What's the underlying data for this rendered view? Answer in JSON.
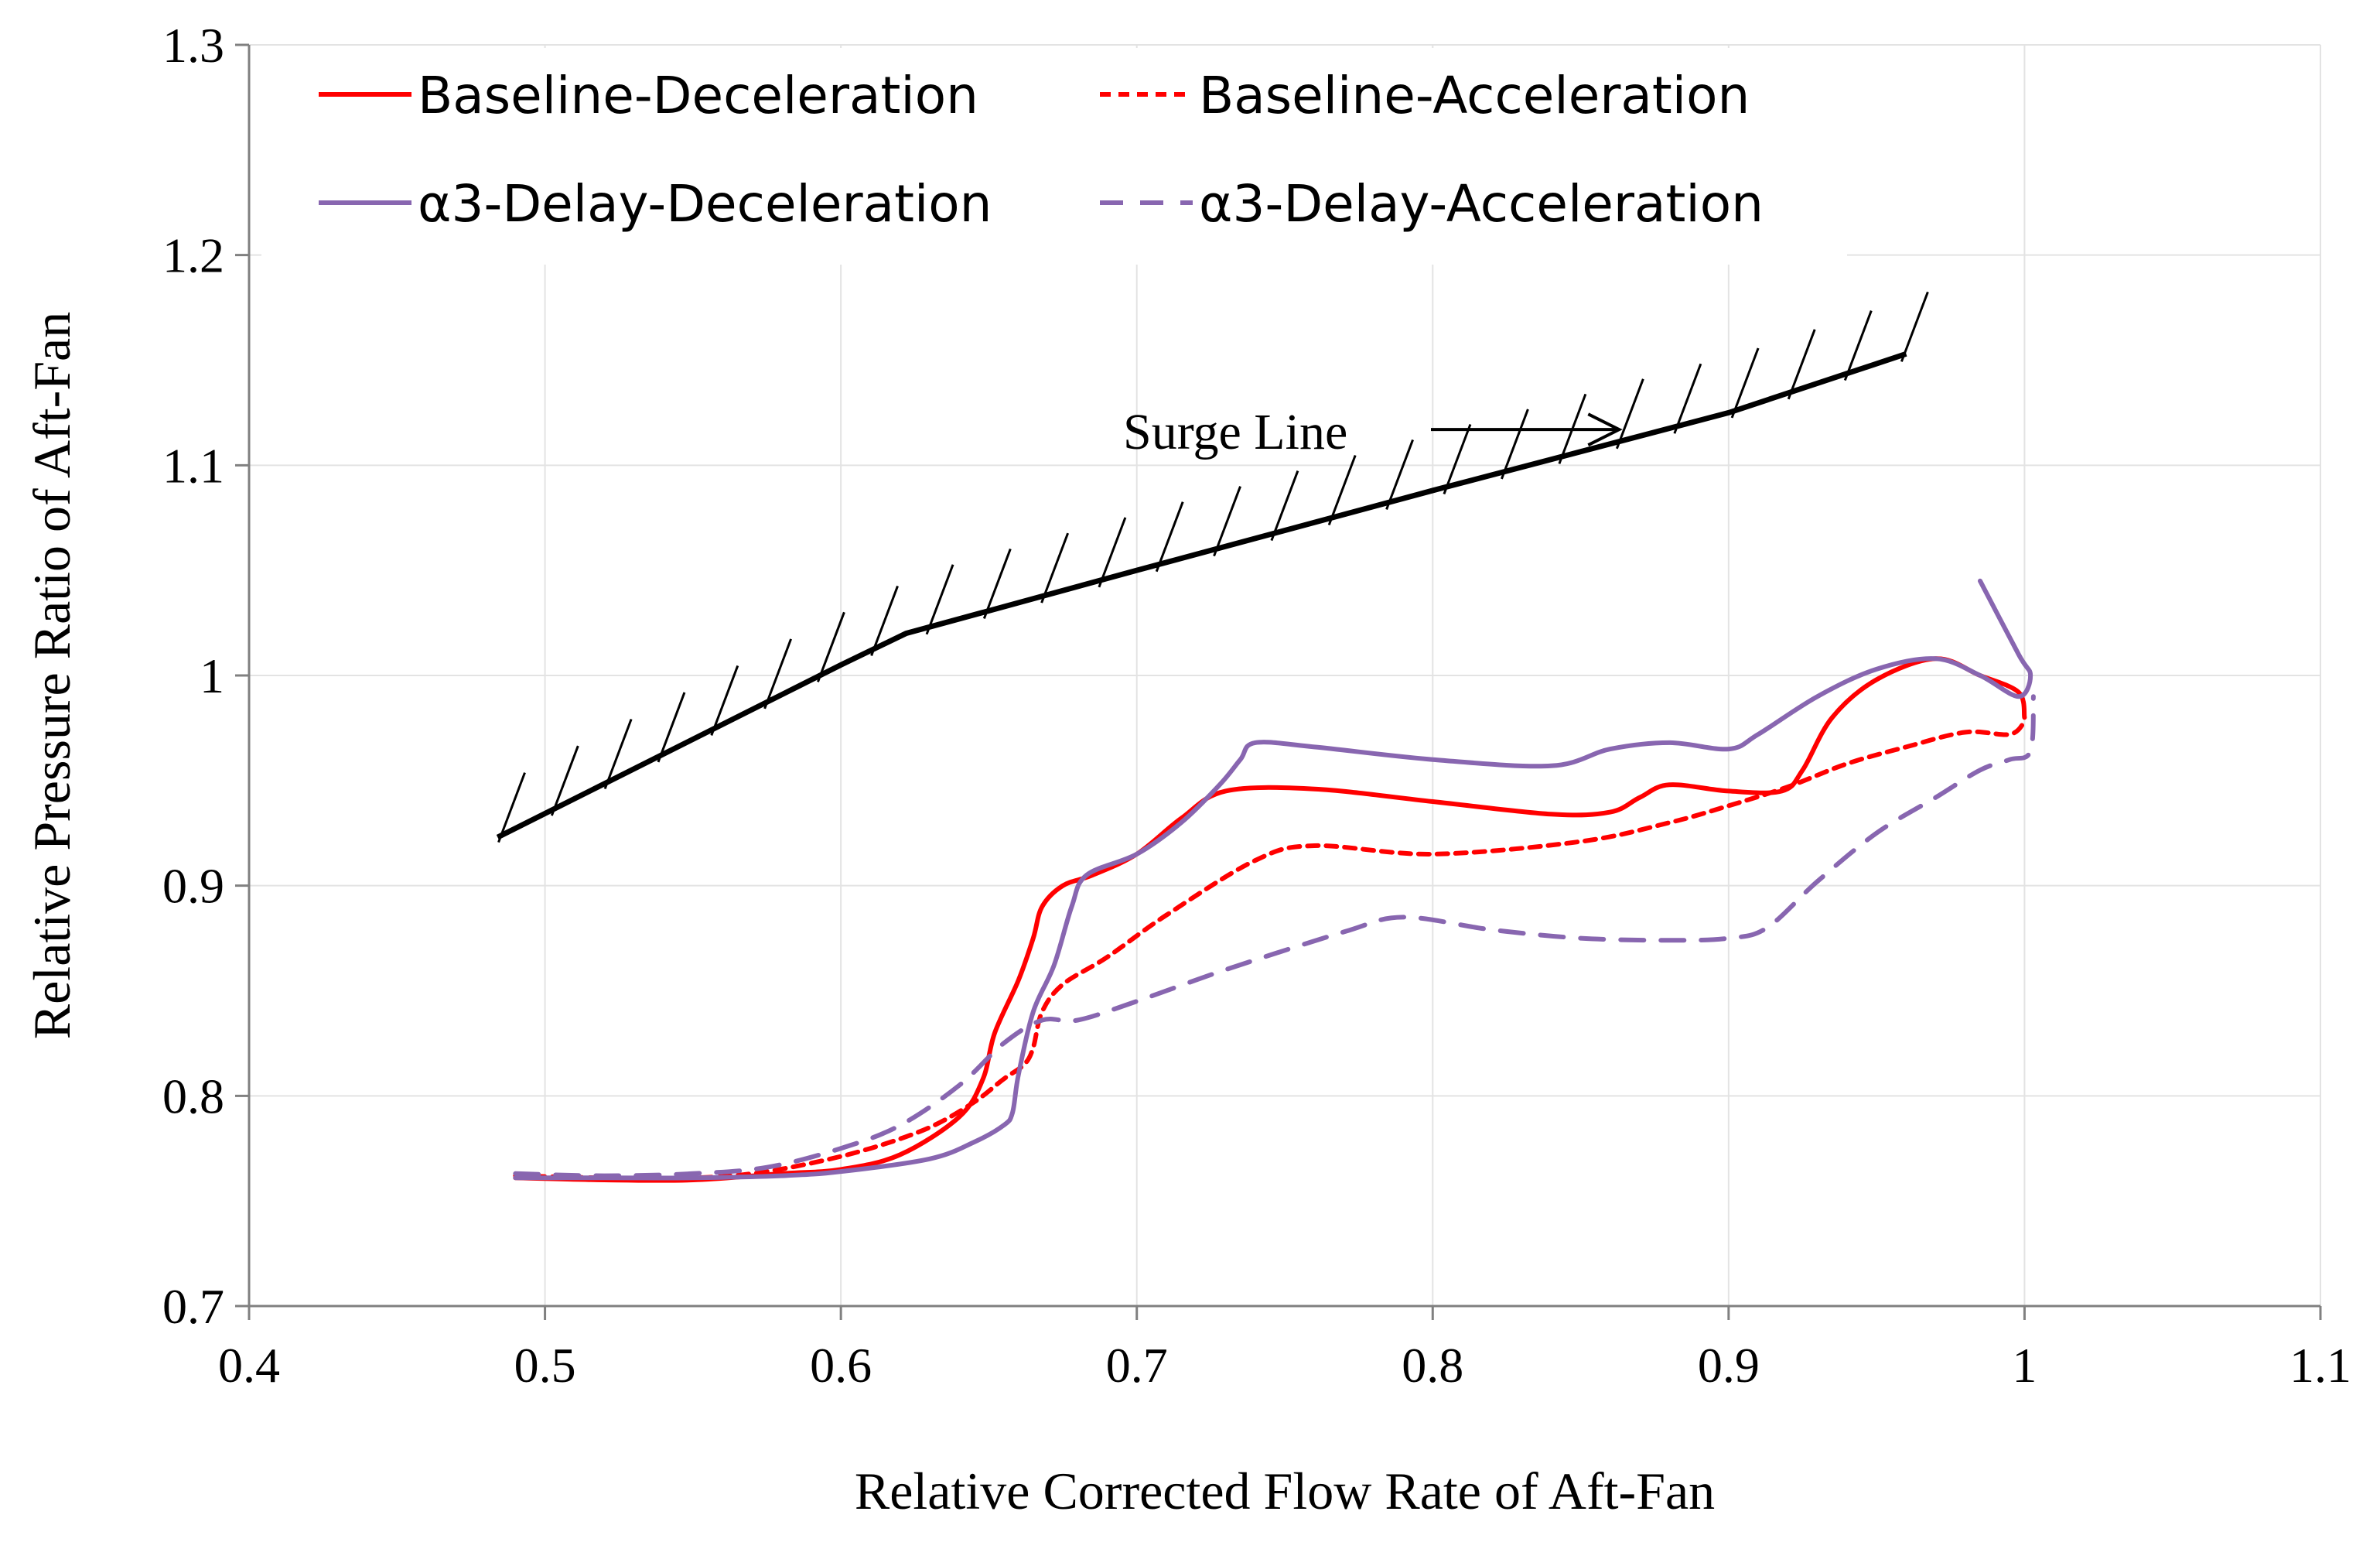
{
  "chart_data": {
    "type": "line",
    "title": "",
    "xlabel": "Relative Corrected Flow Rate of Aft-Fan",
    "ylabel": "Relative Pressure Ratio of Aft-Fan",
    "xlim": [
      0.4,
      1.1
    ],
    "ylim": [
      0.7,
      1.3
    ],
    "x_ticks": [
      0.4,
      0.5,
      0.6,
      0.7,
      0.8,
      0.9,
      1.0,
      1.1
    ],
    "x_tick_labels": [
      "0.4",
      "0.5",
      "0.6",
      "0.7",
      "0.8",
      "0.9",
      "1",
      "1.1"
    ],
    "y_ticks": [
      0.7,
      0.8,
      0.9,
      1.0,
      1.1,
      1.2,
      1.3
    ],
    "y_tick_labels": [
      "0.7",
      "0.8",
      "0.9",
      "1",
      "1.1",
      "1.2",
      "1.3"
    ],
    "grid": true,
    "legend_position": "top-left",
    "annotation": {
      "text": "Surge Line",
      "arrow_to": [
        0.863,
        1.117
      ]
    },
    "surge_line": {
      "name": "Surge Line",
      "color": "#000000",
      "points": [
        [
          0.484,
          0.923
        ],
        [
          0.6,
          1.005
        ],
        [
          0.622,
          1.02
        ],
        [
          0.7,
          1.05
        ],
        [
          0.8,
          1.088
        ],
        [
          0.9,
          1.125
        ],
        [
          0.96,
          1.153
        ]
      ]
    },
    "series": [
      {
        "name": "Baseline-Deceleration",
        "color": "#ff0000",
        "dash": "solid",
        "points": [
          [
            0.49,
            0.761
          ],
          [
            0.52,
            0.76
          ],
          [
            0.55,
            0.76
          ],
          [
            0.58,
            0.763
          ],
          [
            0.6,
            0.765
          ],
          [
            0.62,
            0.772
          ],
          [
            0.64,
            0.79
          ],
          [
            0.648,
            0.808
          ],
          [
            0.652,
            0.83
          ],
          [
            0.66,
            0.855
          ],
          [
            0.665,
            0.875
          ],
          [
            0.668,
            0.89
          ],
          [
            0.675,
            0.9
          ],
          [
            0.685,
            0.905
          ],
          [
            0.7,
            0.915
          ],
          [
            0.715,
            0.932
          ],
          [
            0.73,
            0.945
          ],
          [
            0.76,
            0.946
          ],
          [
            0.8,
            0.94
          ],
          [
            0.84,
            0.934
          ],
          [
            0.86,
            0.935
          ],
          [
            0.87,
            0.942
          ],
          [
            0.88,
            0.948
          ],
          [
            0.9,
            0.945
          ],
          [
            0.918,
            0.945
          ],
          [
            0.925,
            0.955
          ],
          [
            0.935,
            0.98
          ],
          [
            0.95,
            0.998
          ],
          [
            0.97,
            1.008
          ],
          [
            0.985,
            1.0
          ],
          [
            0.998,
            0.992
          ],
          [
            1.0,
            0.98
          ]
        ]
      },
      {
        "name": "Baseline-Acceleration",
        "color": "#ff0000",
        "dash": "dashed",
        "points": [
          [
            0.49,
            0.762
          ],
          [
            0.52,
            0.761
          ],
          [
            0.55,
            0.761
          ],
          [
            0.57,
            0.763
          ],
          [
            0.59,
            0.768
          ],
          [
            0.61,
            0.775
          ],
          [
            0.63,
            0.785
          ],
          [
            0.645,
            0.797
          ],
          [
            0.655,
            0.808
          ],
          [
            0.662,
            0.815
          ],
          [
            0.665,
            0.823
          ],
          [
            0.668,
            0.84
          ],
          [
            0.675,
            0.853
          ],
          [
            0.69,
            0.866
          ],
          [
            0.71,
            0.886
          ],
          [
            0.74,
            0.912
          ],
          [
            0.76,
            0.919
          ],
          [
            0.8,
            0.915
          ],
          [
            0.85,
            0.921
          ],
          [
            0.88,
            0.93
          ],
          [
            0.9,
            0.938
          ],
          [
            0.92,
            0.947
          ],
          [
            0.94,
            0.958
          ],
          [
            0.96,
            0.966
          ],
          [
            0.98,
            0.973
          ],
          [
            0.995,
            0.972
          ],
          [
            1.0,
            0.978
          ]
        ]
      },
      {
        "name": "α3-Delay-Deceleration",
        "color": "#8866b0",
        "dash": "solid",
        "points": [
          [
            0.49,
            0.761
          ],
          [
            0.52,
            0.761
          ],
          [
            0.55,
            0.761
          ],
          [
            0.58,
            0.762
          ],
          [
            0.6,
            0.764
          ],
          [
            0.63,
            0.77
          ],
          [
            0.645,
            0.778
          ],
          [
            0.655,
            0.786
          ],
          [
            0.658,
            0.792
          ],
          [
            0.66,
            0.81
          ],
          [
            0.665,
            0.84
          ],
          [
            0.672,
            0.862
          ],
          [
            0.678,
            0.89
          ],
          [
            0.683,
            0.905
          ],
          [
            0.7,
            0.915
          ],
          [
            0.715,
            0.93
          ],
          [
            0.728,
            0.948
          ],
          [
            0.735,
            0.96
          ],
          [
            0.74,
            0.968
          ],
          [
            0.76,
            0.966
          ],
          [
            0.8,
            0.96
          ],
          [
            0.84,
            0.957
          ],
          [
            0.86,
            0.965
          ],
          [
            0.88,
            0.968
          ],
          [
            0.9,
            0.965
          ],
          [
            0.91,
            0.972
          ],
          [
            0.93,
            0.99
          ],
          [
            0.95,
            1.003
          ],
          [
            0.97,
            1.008
          ],
          [
            0.985,
            1.0
          ],
          [
            0.998,
            0.99
          ],
          [
            1.002,
            1.0
          ],
          [
            0.998,
            1.01
          ],
          [
            0.985,
            1.045
          ]
        ]
      },
      {
        "name": "α3-Delay-Acceleration",
        "color": "#8866b0",
        "dash": "dashed",
        "points": [
          [
            0.49,
            0.763
          ],
          [
            0.52,
            0.762
          ],
          [
            0.55,
            0.763
          ],
          [
            0.575,
            0.766
          ],
          [
            0.6,
            0.775
          ],
          [
            0.62,
            0.786
          ],
          [
            0.64,
            0.805
          ],
          [
            0.655,
            0.825
          ],
          [
            0.668,
            0.836
          ],
          [
            0.68,
            0.836
          ],
          [
            0.7,
            0.845
          ],
          [
            0.73,
            0.86
          ],
          [
            0.77,
            0.878
          ],
          [
            0.79,
            0.885
          ],
          [
            0.82,
            0.879
          ],
          [
            0.85,
            0.875
          ],
          [
            0.88,
            0.874
          ],
          [
            0.9,
            0.875
          ],
          [
            0.913,
            0.88
          ],
          [
            0.93,
            0.902
          ],
          [
            0.95,
            0.925
          ],
          [
            0.97,
            0.942
          ],
          [
            0.985,
            0.955
          ],
          [
            0.995,
            0.96
          ],
          [
            1.002,
            0.964
          ],
          [
            1.003,
            0.99
          ]
        ]
      }
    ]
  }
}
